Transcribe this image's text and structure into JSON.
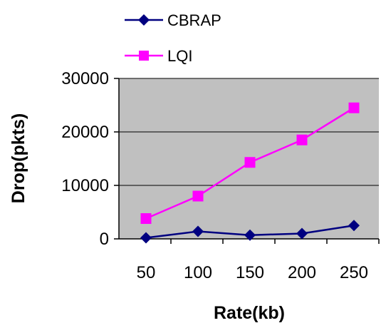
{
  "chart_data": {
    "type": "line",
    "categories": [
      "50",
      "100",
      "150",
      "200",
      "250"
    ],
    "series": [
      {
        "name": "CBRAP",
        "values": [
          200,
          1400,
          700,
          1000,
          2500
        ],
        "color": "#000080",
        "marker": "diamond"
      },
      {
        "name": "LQI",
        "values": [
          3800,
          8000,
          14300,
          18500,
          24500
        ],
        "color": "#ff00ff",
        "marker": "square"
      }
    ],
    "xlabel": "Rate(kb)",
    "ylabel": "Drop(pkts)",
    "yticks": [
      "0",
      "10000",
      "20000",
      "30000"
    ],
    "ylim": [
      0,
      30000
    ],
    "grid": true,
    "plot_background": "#c0c0c0",
    "legend_position": "top"
  }
}
